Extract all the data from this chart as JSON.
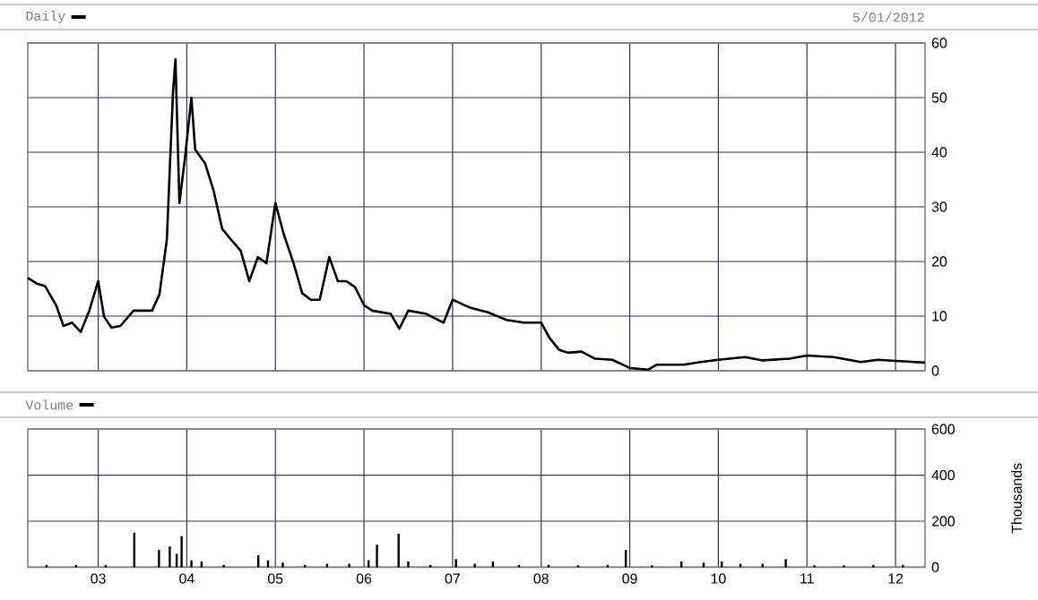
{
  "chart_data": [
    {
      "type": "line",
      "subtitle": "5/01/2012",
      "legend": "top left",
      "grid": true,
      "tick_labels": "y",
      "xlim": [
        "2002-03-15",
        "2012-05-01"
      ],
      "xticks": [
        {
          "value": "2003-01-01",
          "label": null
        },
        {
          "value": "2004-01-01",
          "label": null
        },
        {
          "value": "2005-01-01",
          "label": null
        },
        {
          "value": "2006-01-01",
          "label": null
        },
        {
          "value": "2007-01-01",
          "label": null
        },
        {
          "value": "2008-01-01",
          "label": null
        },
        {
          "value": "2009-01-01",
          "label": null
        },
        {
          "value": "2010-01-01",
          "label": null
        },
        {
          "value": "2011-01-01",
          "label": null
        },
        {
          "value": "2012-01-01",
          "label": null
        }
      ],
      "ylim": [
        0,
        60
      ],
      "yticks": [
        0,
        10,
        20,
        30,
        40,
        50,
        60
      ],
      "x": [
        "2002-03-15",
        "2002-04-20",
        "2002-05-25",
        "2002-07-10",
        "2002-08-10",
        "2002-09-15",
        "2002-10-20",
        "2002-11-25",
        "2003-01-01",
        "2003-01-25",
        "2003-02-25",
        "2003-04-01",
        "2003-05-25",
        "2003-07-01",
        "2003-08-10",
        "2003-09-10",
        "2003-10-10",
        "2003-11-05",
        "2003-11-15",
        "2003-12-01",
        "2003-12-25",
        "2004-01-20",
        "2004-02-05",
        "2004-03-15",
        "2004-04-20",
        "2004-05-25",
        "2004-07-01",
        "2004-08-10",
        "2004-09-15",
        "2004-10-20",
        "2004-11-25",
        "2005-01-01",
        "2005-02-05",
        "2005-03-15",
        "2005-04-20",
        "2005-05-25",
        "2005-07-01",
        "2005-08-10",
        "2005-09-15",
        "2005-10-20",
        "2005-11-25",
        "2006-01-01",
        "2006-02-05",
        "2006-04-20",
        "2006-05-25",
        "2006-07-01",
        "2006-09-15",
        "2006-11-25",
        "2007-01-01",
        "2007-03-15",
        "2007-05-25",
        "2007-08-10",
        "2007-10-20",
        "2008-01-01",
        "2008-02-05",
        "2008-03-15",
        "2008-04-20",
        "2008-06-15",
        "2008-08-10",
        "2008-10-20",
        "2009-01-01",
        "2009-03-15",
        "2009-04-20",
        "2009-08-10",
        "2009-10-20",
        "2010-01-01",
        "2010-04-20",
        "2010-07-01",
        "2010-10-20",
        "2011-01-01",
        "2011-04-20",
        "2011-08-10",
        "2011-10-20",
        "2012-01-01",
        "2012-05-01"
      ],
      "series": [
        {
          "name": "Daily",
          "color": "#000000",
          "values": [
            17,
            16,
            15.5,
            12,
            8.2,
            8.8,
            7.1,
            11,
            16.4,
            9.9,
            7.9,
            8.2,
            11,
            11,
            11,
            14,
            24,
            51,
            57,
            30.7,
            39.4,
            50,
            40.5,
            38,
            33,
            26,
            24,
            22,
            16.4,
            20.8,
            19.7,
            30.7,
            25,
            19.7,
            14.2,
            13,
            13,
            20.8,
            16.4,
            16.4,
            15.3,
            12,
            11,
            10.4,
            7.7,
            11,
            10.4,
            8.8,
            13,
            11.5,
            10.7,
            9.3,
            8.8,
            8.8,
            6,
            3.8,
            3.3,
            3.5,
            2.2,
            2,
            0.5,
            0.2,
            1.1,
            1.1,
            1.6,
            2,
            2.5,
            1.9,
            2.2,
            2.8,
            2.5,
            1.6,
            2,
            1.8,
            1.5
          ]
        }
      ]
    },
    {
      "type": "bar",
      "ylabel": "Thousands",
      "legend": "top left",
      "grid": true,
      "xlim": [
        "2002-03-15",
        "2012-05-01"
      ],
      "xticks": [
        {
          "value": "2003-01-01",
          "label": "03"
        },
        {
          "value": "2004-01-01",
          "label": "04"
        },
        {
          "value": "2005-01-01",
          "label": "05"
        },
        {
          "value": "2006-01-01",
          "label": "06"
        },
        {
          "value": "2007-01-01",
          "label": "07"
        },
        {
          "value": "2008-01-01",
          "label": "08"
        },
        {
          "value": "2009-01-01",
          "label": "09"
        },
        {
          "value": "2010-01-01",
          "label": "10"
        },
        {
          "value": "2011-01-01",
          "label": "11"
        },
        {
          "value": "2012-01-01",
          "label": "12"
        }
      ],
      "ylim": [
        0,
        600
      ],
      "yticks": [
        0,
        200,
        400,
        600
      ],
      "x": [
        "2002-06-01",
        "2002-10-01",
        "2003-02-01",
        "2003-05-28",
        "2003-09-08",
        "2003-10-22",
        "2003-11-20",
        "2003-12-10",
        "2004-01-20",
        "2004-03-01",
        "2004-06-01",
        "2004-10-22",
        "2004-12-01",
        "2005-02-01",
        "2005-05-01",
        "2005-08-01",
        "2005-11-01",
        "2006-01-20",
        "2006-02-24",
        "2006-05-22",
        "2006-07-01",
        "2006-10-01",
        "2007-01-15",
        "2007-04-01",
        "2007-06-15",
        "2007-10-01",
        "2008-02-01",
        "2008-06-01",
        "2008-10-01",
        "2008-12-15",
        "2009-04-01",
        "2009-08-01",
        "2009-11-01",
        "2010-01-15",
        "2010-04-01",
        "2010-07-01",
        "2010-10-05",
        "2011-02-01",
        "2011-06-01",
        "2011-10-01",
        "2012-02-01"
      ],
      "series": [
        {
          "name": "Volume",
          "color": "#000000",
          "values": [
            10,
            10,
            10,
            150,
            75,
            90,
            58,
            135,
            30,
            25,
            10,
            52,
            30,
            20,
            10,
            15,
            15,
            30,
            98,
            145,
            25,
            10,
            35,
            15,
            25,
            10,
            10,
            8,
            10,
            75,
            8,
            25,
            20,
            25,
            15,
            15,
            35,
            8,
            8,
            10,
            10
          ]
        }
      ]
    }
  ]
}
